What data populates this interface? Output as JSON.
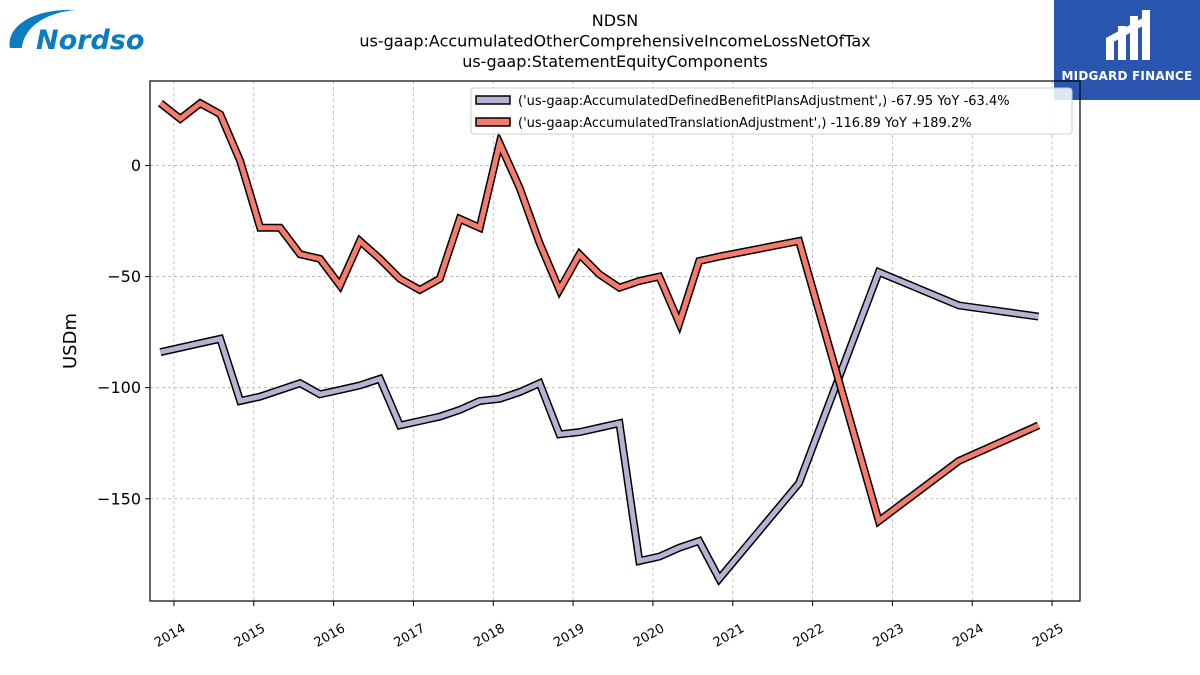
{
  "brand": {
    "left_logo_text": "Nordson",
    "right_logo_text": "MIDGARD FINANCE",
    "accent_left": "#0a7dc1",
    "accent_right": "#2a56b0"
  },
  "chart_data": {
    "type": "line",
    "title": [
      "NDSN",
      "us-gaap:AccumulatedOtherComprehensiveIncomeLossNetOfTax",
      "us-gaap:StatementEquityComponents"
    ],
    "ylabel": "USDm",
    "xlabel": "",
    "xlim": [
      2013.7,
      2025.35
    ],
    "ylim": [
      -196,
      38
    ],
    "yticks": [
      0,
      -50,
      -100,
      -150
    ],
    "ytick_labels": [
      "0",
      "−50",
      "−100",
      "−150"
    ],
    "xticks": [
      2014,
      2015,
      2016,
      2017,
      2018,
      2019,
      2020,
      2021,
      2022,
      2023,
      2024,
      2025
    ],
    "grid": true,
    "legend_position": "top-right",
    "series": [
      {
        "name": "('us-gaap:AccumulatedDefinedBenefitPlansAdjustment',) -67.95 YoY -63.4%",
        "color": "#b3b3d3",
        "x": [
          2013.83,
          2014.08,
          2014.33,
          2014.58,
          2014.83,
          2015.08,
          2015.33,
          2015.58,
          2015.83,
          2016.08,
          2016.33,
          2016.58,
          2016.83,
          2017.08,
          2017.33,
          2017.58,
          2017.83,
          2018.08,
          2018.33,
          2018.58,
          2018.83,
          2019.08,
          2019.33,
          2019.58,
          2019.83,
          2020.08,
          2020.33,
          2020.58,
          2020.83,
          2021.83,
          2022.83,
          2023.83,
          2024.83
        ],
        "values": [
          -84,
          -82,
          -80,
          -78,
          -106,
          -104,
          -101,
          -98,
          -103,
          -101,
          -99,
          -96,
          -117,
          -115,
          -113,
          -110,
          -106,
          -105,
          -102,
          -98,
          -121,
          -120,
          -118,
          -116,
          -178,
          -176,
          -172,
          -169,
          -186,
          -143,
          -48,
          -63,
          -68
        ]
      },
      {
        "name": "('us-gaap:AccumulatedTranslationAdjustment',) -116.89 YoY +189.2%",
        "color": "#f47c6c",
        "x": [
          2013.83,
          2014.08,
          2014.33,
          2014.58,
          2014.83,
          2015.08,
          2015.33,
          2015.58,
          2015.83,
          2016.08,
          2016.33,
          2016.58,
          2016.83,
          2017.08,
          2017.33,
          2017.58,
          2017.83,
          2018.08,
          2018.33,
          2018.58,
          2018.83,
          2019.08,
          2019.33,
          2019.58,
          2019.83,
          2020.08,
          2020.33,
          2020.58,
          2020.83,
          2021.83,
          2022.83,
          2023.83,
          2024.83
        ],
        "values": [
          28,
          21,
          28,
          23,
          2,
          -28,
          -28,
          -40,
          -42,
          -54,
          -34,
          -42,
          -51,
          -56,
          -51,
          -24,
          -28,
          10,
          -10,
          -35,
          -56,
          -40,
          -49,
          -55,
          -52,
          -50,
          -71,
          -43,
          -41,
          -34,
          -160,
          -133,
          -117
        ]
      }
    ]
  }
}
